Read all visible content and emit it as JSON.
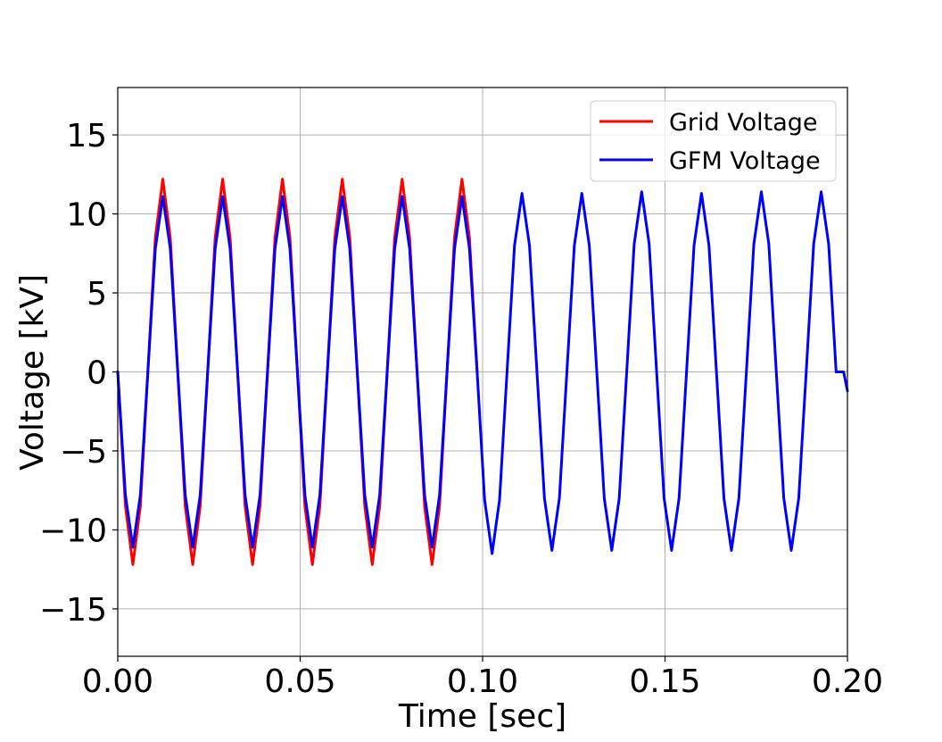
{
  "chart_data": {
    "type": "line",
    "title": "",
    "xlabel": "Time [sec]",
    "ylabel": "Voltage [kV]",
    "xlim": [
      0,
      0.2
    ],
    "ylim": [
      -18,
      18
    ],
    "x_ticks": [
      0.0,
      0.05,
      0.1,
      0.15,
      0.2
    ],
    "x_tick_labels": [
      "0.00",
      "0.05",
      "0.10",
      "0.15",
      "0.20"
    ],
    "y_ticks": [
      -15,
      -10,
      -5,
      0,
      5,
      10,
      15
    ],
    "y_tick_labels": [
      "−15",
      "−10",
      "−5",
      "0",
      "5",
      "10",
      "15"
    ],
    "grid": true,
    "legend_position": "upper-right",
    "series": [
      {
        "name": "Grid Voltage",
        "color": "#ff0000",
        "x": [
          0.0,
          0.0021,
          0.00415,
          0.0062,
          0.00825,
          0.0103,
          0.01235,
          0.0144,
          0.01645,
          0.0185,
          0.02055,
          0.0226,
          0.02465,
          0.0267,
          0.02875,
          0.0308,
          0.03285,
          0.0349,
          0.03695,
          0.039,
          0.04105,
          0.0431,
          0.04515,
          0.0472,
          0.04925,
          0.0513,
          0.05335,
          0.0554,
          0.05745,
          0.0595,
          0.06155,
          0.0636,
          0.06565,
          0.0677,
          0.06975,
          0.0718,
          0.07385,
          0.0759,
          0.07795,
          0.08,
          0.08205,
          0.0841,
          0.08615,
          0.0882,
          0.09025,
          0.0923,
          0.09435,
          0.0964,
          0.0985
        ],
        "values": [
          0.0,
          -8.5,
          -12.2,
          -8.5,
          0.0,
          8.5,
          12.2,
          8.5,
          0.0,
          -8.5,
          -12.2,
          -8.5,
          0.0,
          8.5,
          12.2,
          8.5,
          0.0,
          -8.5,
          -12.2,
          -8.5,
          0.0,
          8.5,
          12.2,
          8.5,
          0.0,
          -8.5,
          -12.2,
          -8.5,
          0.0,
          8.5,
          12.2,
          8.5,
          0.0,
          -8.5,
          -12.2,
          -8.5,
          0.0,
          8.5,
          12.2,
          8.5,
          0.0,
          -8.5,
          -12.2,
          -8.5,
          0.0,
          8.5,
          12.2,
          8.5,
          0.0
        ]
      },
      {
        "name": "GFM Voltage",
        "color": "#0000ff",
        "x": [
          0.0,
          0.0021,
          0.00415,
          0.0062,
          0.00825,
          0.0103,
          0.01235,
          0.0144,
          0.01645,
          0.0185,
          0.02055,
          0.0226,
          0.02465,
          0.0267,
          0.02875,
          0.0308,
          0.03285,
          0.0349,
          0.03695,
          0.039,
          0.04105,
          0.0431,
          0.04515,
          0.0472,
          0.04925,
          0.0513,
          0.05335,
          0.0554,
          0.05745,
          0.0595,
          0.06155,
          0.0636,
          0.06565,
          0.0677,
          0.06975,
          0.0718,
          0.07385,
          0.0759,
          0.07795,
          0.08,
          0.08205,
          0.0841,
          0.08615,
          0.0882,
          0.09025,
          0.0923,
          0.09435,
          0.0964,
          0.0985,
          0.10055,
          0.1026,
          0.10465,
          0.1067,
          0.10875,
          0.1108,
          0.11285,
          0.1149,
          0.11695,
          0.119,
          0.12105,
          0.1231,
          0.12515,
          0.1272,
          0.12925,
          0.1313,
          0.13335,
          0.1354,
          0.13745,
          0.1395,
          0.14155,
          0.1436,
          0.14565,
          0.1477,
          0.14975,
          0.1518,
          0.15385,
          0.1559,
          0.15795,
          0.16,
          0.16205,
          0.1641,
          0.16615,
          0.1682,
          0.17025,
          0.1723,
          0.17435,
          0.1764,
          0.17845,
          0.1805,
          0.18255,
          0.1846,
          0.18665,
          0.1887,
          0.19075,
          0.1928,
          0.19485,
          0.1969,
          0.19895,
          0.2
        ],
        "values": [
          0.0,
          -7.8,
          -11.1,
          -7.8,
          0.0,
          7.8,
          11.1,
          7.8,
          0.0,
          -7.8,
          -11.1,
          -7.8,
          0.0,
          7.8,
          11.1,
          7.8,
          0.0,
          -7.8,
          -11.1,
          -7.8,
          0.0,
          7.8,
          11.1,
          7.8,
          0.0,
          -7.8,
          -11.1,
          -7.8,
          0.0,
          7.8,
          11.1,
          7.8,
          0.0,
          -7.8,
          -11.1,
          -7.8,
          0.0,
          7.8,
          11.1,
          7.8,
          0.0,
          -7.8,
          -11.1,
          -7.8,
          0.0,
          7.8,
          11.1,
          7.8,
          0.0,
          -8.1,
          -11.5,
          -8.1,
          0.0,
          8.0,
          11.3,
          8.0,
          0.0,
          -8.0,
          -11.3,
          -8.0,
          0.0,
          8.0,
          11.3,
          8.0,
          0.0,
          -8.0,
          -11.3,
          -8.0,
          0.0,
          8.1,
          11.4,
          8.1,
          0.0,
          -8.0,
          -11.3,
          -8.0,
          0.0,
          8.0,
          11.3,
          8.0,
          0.0,
          -8.0,
          -11.3,
          -8.0,
          0.0,
          8.1,
          11.4,
          8.1,
          0.0,
          -8.0,
          -11.3,
          -8.0,
          0.0,
          8.1,
          11.4,
          8.1,
          0.0,
          0.0,
          -1.2
        ]
      }
    ]
  }
}
